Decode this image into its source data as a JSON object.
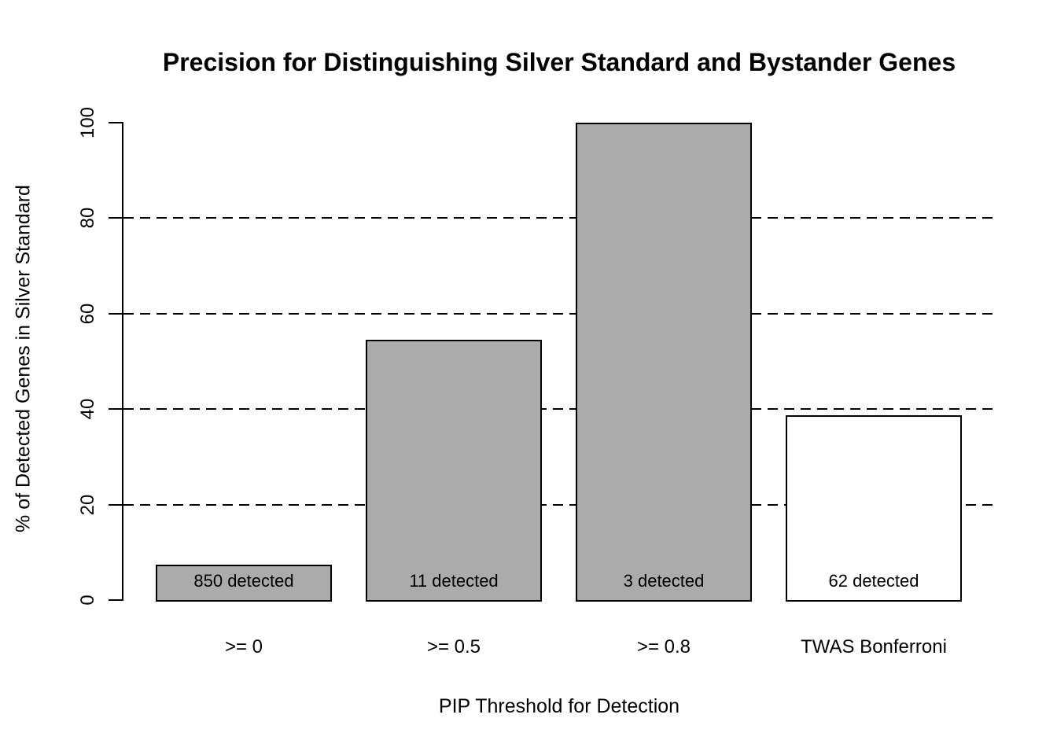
{
  "chart_data": {
    "type": "bar",
    "title": "Precision for Distinguishing Silver Standard and Bystander Genes",
    "xlabel": "PIP Threshold for Detection",
    "ylabel": "% of Detected Genes in Silver Standard",
    "categories": [
      ">= 0",
      ">= 0.5",
      ">= 0.8",
      "TWAS Bonferroni"
    ],
    "values": [
      7.4,
      54.5,
      100,
      38.7
    ],
    "bar_labels": [
      "850 detected",
      "11 detected",
      "3 detected",
      "62 detected"
    ],
    "bar_colors": [
      "#ababab",
      "#ababab",
      "#ababab",
      "#ffffff"
    ],
    "bar_border_color": "#000000",
    "yticks": [
      0,
      20,
      40,
      60,
      80,
      100
    ],
    "gridlines": [
      20,
      40,
      60,
      80
    ],
    "grid_style": "dashed",
    "ylim": [
      0,
      100
    ],
    "legend": "none",
    "background_color": "#ffffff"
  }
}
